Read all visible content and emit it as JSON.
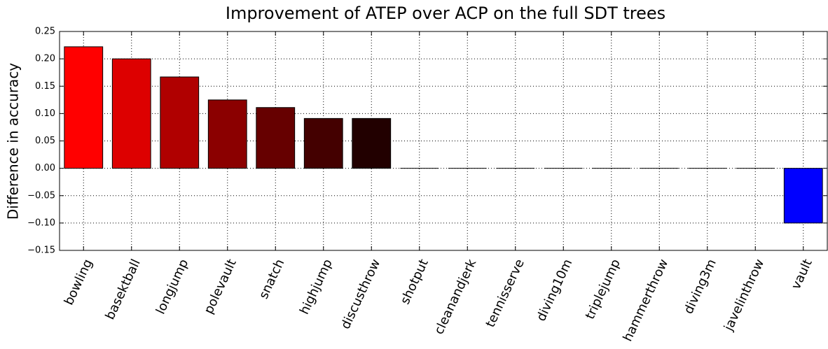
{
  "chart_data": {
    "type": "bar",
    "title": "Improvement of ATEP over ACP on the full SDT trees",
    "y_label": "Difference in accuracy",
    "categories": [
      "bowling",
      "basektball",
      "longjump",
      "polevault",
      "snatch",
      "highjump",
      "discusthrow",
      "shotput",
      "cleanandjerk",
      "tennisserve",
      "diving10m",
      "triplejump",
      "hammerthrow",
      "diving3m",
      "javelinthrow",
      "vault"
    ],
    "values": [
      0.222,
      0.2,
      0.167,
      0.125,
      0.111,
      0.091,
      0.091,
      0,
      0,
      0,
      0,
      0,
      0,
      0,
      0,
      -0.1
    ],
    "colors": [
      "#ff0000",
      "#dd0000",
      "#b00000",
      "#8b0000",
      "#660000",
      "#440000",
      "#220000",
      "#000000",
      "#000000",
      "#000000",
      "#000000",
      "#000000",
      "#000000",
      "#000000",
      "#000000",
      "#0000ff"
    ],
    "ylim": [
      -0.15,
      0.25
    ],
    "yticks": [
      {
        "value": -0.15,
        "label": "−0.15"
      },
      {
        "value": -0.1,
        "label": "−0.10"
      },
      {
        "value": -0.05,
        "label": "−0.05"
      },
      {
        "value": 0,
        "label": "0.00"
      },
      {
        "value": 0.05,
        "label": "0.05"
      },
      {
        "value": 0.1,
        "label": "0.10"
      },
      {
        "value": 0.15,
        "label": "0.15"
      },
      {
        "value": 0.2,
        "label": "0.20"
      },
      {
        "value": 0.25,
        "label": "0.25"
      }
    ],
    "grid": true
  }
}
